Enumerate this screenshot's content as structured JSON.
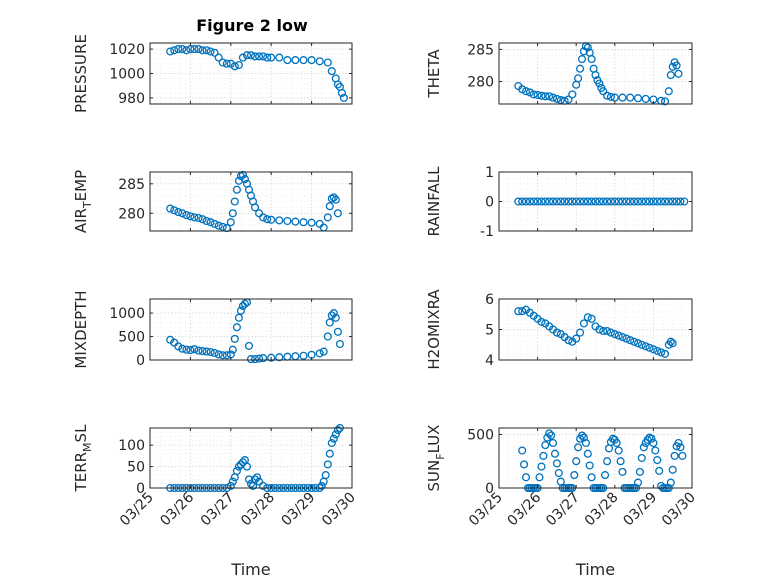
{
  "figure": {
    "title": "Figure 2 low"
  },
  "chart_data": [
    {
      "type": "scatter",
      "id": "pressure",
      "ylabel": "PRESSURE",
      "ylabel_sub": "",
      "xlim": [
        0,
        5
      ],
      "ylim": [
        975,
        1025
      ],
      "yticks": [
        980,
        1000,
        1020
      ],
      "x": [
        0.5,
        0.6,
        0.7,
        0.8,
        0.9,
        1.0,
        1.1,
        1.2,
        1.3,
        1.4,
        1.5,
        1.6,
        1.7,
        1.8,
        1.9,
        2.0,
        2.1,
        2.2,
        2.3,
        2.4,
        2.5,
        2.6,
        2.7,
        2.8,
        2.9,
        3.0,
        3.2,
        3.4,
        3.6,
        3.8,
        4.0,
        4.2,
        4.4,
        4.5,
        4.6,
        4.65,
        4.7,
        4.75,
        4.8
      ],
      "y": [
        1018,
        1019,
        1020,
        1020,
        1019,
        1020,
        1020,
        1020,
        1019,
        1019,
        1018,
        1017,
        1013,
        1009,
        1008,
        1008,
        1006,
        1007,
        1013,
        1015,
        1015,
        1014,
        1014,
        1014,
        1013,
        1013,
        1013,
        1011,
        1011,
        1011,
        1011,
        1010,
        1009,
        1002,
        996,
        991,
        989,
        984,
        980
      ]
    },
    {
      "type": "scatter",
      "id": "theta",
      "ylabel": "THETA",
      "ylabel_sub": "",
      "xlim": [
        0,
        5
      ],
      "ylim": [
        276.5,
        286
      ],
      "yticks": [
        280,
        285
      ],
      "x": [
        0.5,
        0.6,
        0.7,
        0.8,
        0.9,
        1.0,
        1.1,
        1.2,
        1.3,
        1.4,
        1.5,
        1.6,
        1.7,
        1.8,
        1.9,
        2.0,
        2.05,
        2.1,
        2.15,
        2.2,
        2.25,
        2.3,
        2.35,
        2.4,
        2.45,
        2.5,
        2.55,
        2.6,
        2.65,
        2.7,
        2.8,
        2.9,
        3.0,
        3.2,
        3.4,
        3.6,
        3.8,
        4.0,
        4.2,
        4.3,
        4.4,
        4.45,
        4.5,
        4.55,
        4.6,
        4.65
      ],
      "y": [
        279.3,
        278.8,
        278.5,
        278.3,
        278.0,
        277.9,
        277.8,
        277.7,
        277.7,
        277.5,
        277.3,
        277.1,
        277.0,
        277.2,
        278.0,
        279.5,
        280.5,
        282.0,
        283.5,
        284.7,
        285.5,
        285.3,
        284.5,
        283.5,
        282.0,
        281.0,
        280.2,
        279.7,
        279.0,
        278.5,
        277.8,
        277.6,
        277.5,
        277.5,
        277.5,
        277.4,
        277.3,
        277.2,
        277.0,
        276.9,
        278.5,
        281.0,
        282.3,
        283.0,
        282.5,
        281.2
      ]
    },
    {
      "type": "scatter",
      "id": "airtemp",
      "ylabel": "AIR",
      "ylabel_sub": "T",
      "ylabel_post": "EMP",
      "xlim": [
        0,
        5
      ],
      "ylim": [
        277,
        287
      ],
      "yticks": [
        280,
        285
      ],
      "x": [
        0.5,
        0.6,
        0.7,
        0.8,
        0.9,
        1.0,
        1.1,
        1.2,
        1.3,
        1.4,
        1.5,
        1.6,
        1.7,
        1.8,
        1.9,
        2.0,
        2.05,
        2.1,
        2.15,
        2.2,
        2.25,
        2.3,
        2.35,
        2.4,
        2.45,
        2.5,
        2.55,
        2.6,
        2.7,
        2.8,
        2.9,
        3.0,
        3.2,
        3.4,
        3.6,
        3.8,
        4.0,
        4.2,
        4.3,
        4.4,
        4.45,
        4.5,
        4.55,
        4.6,
        4.65
      ],
      "y": [
        280.8,
        280.5,
        280.2,
        280.0,
        279.7,
        279.5,
        279.3,
        279.2,
        279.0,
        278.7,
        278.5,
        278.2,
        277.9,
        277.7,
        277.5,
        278.5,
        280.0,
        282.0,
        284.0,
        285.5,
        286.3,
        286.5,
        285.8,
        285.0,
        284.0,
        283.0,
        282.0,
        281.0,
        280.0,
        279.3,
        279.0,
        278.9,
        278.8,
        278.7,
        278.6,
        278.5,
        278.4,
        278.2,
        277.6,
        279.3,
        281.2,
        282.5,
        282.7,
        282.3,
        280.0
      ]
    },
    {
      "type": "scatter",
      "id": "rainfall",
      "ylabel": "RAINFALL",
      "ylabel_sub": "",
      "xlim": [
        0,
        5
      ],
      "ylim": [
        -1,
        1
      ],
      "yticks": [
        -1,
        0,
        1
      ],
      "x": [
        0.5,
        0.6,
        0.7,
        0.8,
        0.9,
        1.0,
        1.1,
        1.2,
        1.3,
        1.4,
        1.5,
        1.6,
        1.7,
        1.8,
        1.9,
        2.0,
        2.1,
        2.2,
        2.3,
        2.4,
        2.5,
        2.6,
        2.7,
        2.8,
        2.9,
        3.0,
        3.1,
        3.2,
        3.3,
        3.4,
        3.5,
        3.6,
        3.7,
        3.8,
        3.9,
        4.0,
        4.1,
        4.2,
        4.3,
        4.4,
        4.5,
        4.6,
        4.7,
        4.8
      ],
      "y": [
        0,
        0,
        0,
        0,
        0,
        0,
        0,
        0,
        0,
        0,
        0,
        0,
        0,
        0,
        0,
        0,
        0,
        0,
        0,
        0,
        0,
        0,
        0,
        0,
        0,
        0,
        0,
        0,
        0,
        0,
        0,
        0,
        0,
        0,
        0,
        0,
        0,
        0,
        0,
        0,
        0,
        0,
        0,
        0
      ]
    },
    {
      "type": "scatter",
      "id": "mixdepth",
      "ylabel": "MIXDEPTH",
      "ylabel_sub": "",
      "xlim": [
        0,
        5
      ],
      "ylim": [
        0,
        1300
      ],
      "yticks": [
        0,
        500,
        1000
      ],
      "x": [
        0.5,
        0.6,
        0.7,
        0.8,
        0.9,
        1.0,
        1.1,
        1.2,
        1.3,
        1.4,
        1.5,
        1.6,
        1.7,
        1.8,
        1.9,
        2.0,
        2.05,
        2.1,
        2.15,
        2.2,
        2.25,
        2.3,
        2.35,
        2.4,
        2.45,
        2.5,
        2.6,
        2.7,
        2.8,
        3.0,
        3.2,
        3.4,
        3.6,
        3.8,
        4.0,
        4.2,
        4.3,
        4.4,
        4.45,
        4.5,
        4.55,
        4.6,
        4.65,
        4.7
      ],
      "y": [
        430,
        370,
        290,
        240,
        220,
        210,
        230,
        200,
        190,
        180,
        170,
        150,
        120,
        100,
        100,
        120,
        220,
        450,
        700,
        900,
        1050,
        1150,
        1200,
        1230,
        300,
        20,
        20,
        30,
        40,
        50,
        60,
        70,
        80,
        90,
        110,
        140,
        180,
        500,
        800,
        950,
        1000,
        900,
        600,
        340
      ]
    },
    {
      "type": "scatter",
      "id": "h2omixra",
      "ylabel": "H2OMIXRA",
      "ylabel_sub": "",
      "xlim": [
        0,
        5
      ],
      "ylim": [
        4,
        6
      ],
      "yticks": [
        4,
        5,
        6
      ],
      "x": [
        0.5,
        0.6,
        0.7,
        0.8,
        0.9,
        1.0,
        1.1,
        1.2,
        1.3,
        1.4,
        1.5,
        1.6,
        1.7,
        1.8,
        1.9,
        2.0,
        2.1,
        2.2,
        2.3,
        2.4,
        2.5,
        2.6,
        2.7,
        2.8,
        2.9,
        3.0,
        3.1,
        3.2,
        3.3,
        3.4,
        3.5,
        3.6,
        3.7,
        3.8,
        3.9,
        4.0,
        4.1,
        4.2,
        4.3,
        4.4,
        4.45,
        4.5
      ],
      "y": [
        5.6,
        5.6,
        5.65,
        5.55,
        5.45,
        5.35,
        5.25,
        5.2,
        5.1,
        5.0,
        4.9,
        4.85,
        4.75,
        4.65,
        4.6,
        4.7,
        4.9,
        5.2,
        5.4,
        5.35,
        5.1,
        5.0,
        4.95,
        4.95,
        4.9,
        4.85,
        4.8,
        4.75,
        4.7,
        4.65,
        4.6,
        4.55,
        4.5,
        4.45,
        4.4,
        4.35,
        4.3,
        4.25,
        4.2,
        4.5,
        4.6,
        4.55
      ]
    },
    {
      "type": "scatter",
      "id": "terrmsl",
      "ylabel": "TERR",
      "ylabel_sub": "M",
      "ylabel_post": "SL",
      "xlim": [
        0,
        5
      ],
      "ylim": [
        0,
        140
      ],
      "yticks": [
        0,
        50,
        100
      ],
      "x": [
        0.5,
        0.6,
        0.7,
        0.8,
        0.9,
        1.0,
        1.1,
        1.2,
        1.3,
        1.4,
        1.5,
        1.6,
        1.7,
        1.8,
        1.9,
        2.0,
        2.05,
        2.1,
        2.15,
        2.2,
        2.25,
        2.3,
        2.35,
        2.4,
        2.45,
        2.5,
        2.55,
        2.6,
        2.65,
        2.7,
        2.8,
        2.9,
        3.0,
        3.1,
        3.2,
        3.3,
        3.4,
        3.5,
        3.6,
        3.7,
        3.8,
        3.9,
        4.0,
        4.1,
        4.2,
        4.25,
        4.3,
        4.35,
        4.4,
        4.45,
        4.5,
        4.55,
        4.6,
        4.65,
        4.7
      ],
      "y": [
        0,
        0,
        0,
        0,
        0,
        0,
        0,
        0,
        0,
        0,
        0,
        0,
        0,
        0,
        0,
        5,
        15,
        25,
        40,
        50,
        55,
        60,
        65,
        50,
        20,
        10,
        5,
        20,
        25,
        15,
        5,
        0,
        0,
        0,
        0,
        0,
        0,
        0,
        0,
        0,
        0,
        0,
        0,
        0,
        0,
        5,
        15,
        30,
        55,
        80,
        105,
        115,
        125,
        135,
        140
      ]
    },
    {
      "type": "scatter",
      "id": "sunflux",
      "ylabel": "SUN",
      "ylabel_sub": "F",
      "ylabel_post": "LUX",
      "xlim": [
        0,
        5
      ],
      "ylim": [
        0,
        560
      ],
      "yticks": [
        0,
        500
      ],
      "x": [
        0.6,
        0.65,
        0.7,
        0.75,
        0.8,
        0.85,
        0.9,
        0.95,
        1.0,
        1.05,
        1.1,
        1.15,
        1.2,
        1.25,
        1.3,
        1.35,
        1.4,
        1.45,
        1.5,
        1.55,
        1.6,
        1.65,
        1.7,
        1.75,
        1.8,
        1.85,
        1.9,
        1.95,
        2.0,
        2.05,
        2.1,
        2.15,
        2.2,
        2.25,
        2.3,
        2.35,
        2.4,
        2.45,
        2.5,
        2.55,
        2.6,
        2.65,
        2.7,
        2.75,
        2.8,
        2.85,
        2.9,
        2.95,
        3.0,
        3.05,
        3.1,
        3.15,
        3.2,
        3.25,
        3.3,
        3.35,
        3.4,
        3.45,
        3.5,
        3.55,
        3.6,
        3.65,
        3.7,
        3.75,
        3.8,
        3.85,
        3.9,
        3.95,
        4.0,
        4.05,
        4.1,
        4.15,
        4.2,
        4.25,
        4.3,
        4.35,
        4.4,
        4.45,
        4.5,
        4.55,
        4.6,
        4.65,
        4.7,
        4.75
      ],
      "y": [
        350,
        220,
        100,
        0,
        0,
        0,
        0,
        0,
        0,
        100,
        200,
        300,
        400,
        470,
        510,
        490,
        420,
        320,
        230,
        140,
        60,
        0,
        0,
        0,
        0,
        0,
        0,
        120,
        250,
        380,
        460,
        490,
        470,
        420,
        320,
        210,
        100,
        0,
        0,
        0,
        0,
        0,
        0,
        120,
        250,
        370,
        430,
        460,
        450,
        420,
        350,
        250,
        150,
        0,
        0,
        0,
        0,
        0,
        0,
        0,
        50,
        150,
        280,
        380,
        420,
        450,
        470,
        460,
        420,
        350,
        260,
        160,
        20,
        0,
        0,
        0,
        0,
        50,
        170,
        300,
        390,
        420,
        380,
        300
      ]
    }
  ],
  "x_axis": {
    "ticks": [
      0,
      1,
      2,
      3,
      4,
      5
    ],
    "tick_labels": [
      "03/25",
      "03/26",
      "03/27",
      "03/28",
      "03/29",
      "03/30"
    ],
    "label": "Time"
  }
}
